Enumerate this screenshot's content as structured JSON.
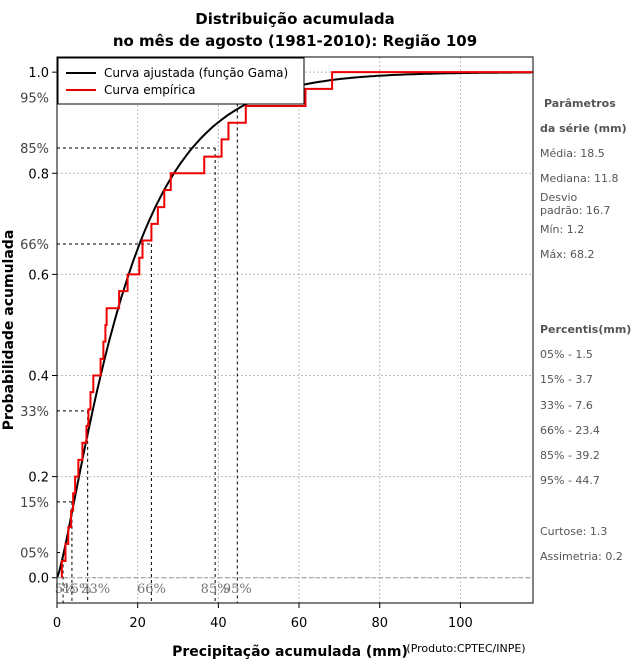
{
  "chart_data": {
    "type": "line",
    "title_line1": "Distribuição acumulada",
    "title_line2": "no mês de agosto (1981-2010): Região 109",
    "xlabel": "Precipitação acumulada (mm)",
    "xlabel_note": "(Produto:CPTEC/INPE)",
    "ylabel": "Probabilidade acumulada",
    "xlim": [
      0,
      118
    ],
    "ylim": [
      -0.05,
      1.03
    ],
    "x_ticks": [
      0,
      20,
      40,
      60,
      80,
      100
    ],
    "y_ticks": [
      0.0,
      0.2,
      0.4,
      0.6,
      0.8,
      1.0
    ],
    "y_tick_labels": [
      "0.0",
      "0.2",
      "0.4",
      "0.6",
      "0.8",
      "1.0"
    ],
    "grid": true,
    "legend_position": "top-left",
    "series": [
      {
        "name": "Curva ajustada (função Gama)",
        "color": "#000000",
        "gamma_shape": 1.3,
        "gamma_scale": 14.2
      },
      {
        "name": "Curva empírica",
        "color": "#ee0000",
        "steps": [
          [
            1.2,
            0.0
          ],
          [
            1.2,
            0.033
          ],
          [
            2.1,
            0.067
          ],
          [
            2.8,
            0.1
          ],
          [
            3.5,
            0.133
          ],
          [
            4.0,
            0.167
          ],
          [
            4.5,
            0.2
          ],
          [
            5.3,
            0.233
          ],
          [
            6.3,
            0.267
          ],
          [
            7.3,
            0.3
          ],
          [
            7.8,
            0.333
          ],
          [
            8.3,
            0.367
          ],
          [
            9.0,
            0.4
          ],
          [
            10.8,
            0.433
          ],
          [
            11.5,
            0.467
          ],
          [
            12.0,
            0.5
          ],
          [
            12.3,
            0.533
          ],
          [
            15.4,
            0.567
          ],
          [
            17.5,
            0.6
          ],
          [
            20.4,
            0.633
          ],
          [
            21.2,
            0.667
          ],
          [
            23.4,
            0.7
          ],
          [
            25.0,
            0.733
          ],
          [
            26.6,
            0.767
          ],
          [
            28.2,
            0.8
          ],
          [
            36.5,
            0.833
          ],
          [
            40.8,
            0.867
          ],
          [
            42.5,
            0.9
          ],
          [
            46.8,
            0.933
          ],
          [
            61.6,
            0.967
          ],
          [
            68.2,
            1.0
          ],
          [
            118,
            1.0
          ]
        ]
      }
    ],
    "percentile_guides": [
      {
        "label": "5%",
        "y_label": "05%",
        "x": 1.5,
        "y": 0.05
      },
      {
        "label": "15%",
        "y_label": "15%",
        "x": 3.7,
        "y": 0.15
      },
      {
        "label": "33%",
        "y_label": "33%",
        "x": 7.6,
        "y": 0.33
      },
      {
        "label": "66%",
        "y_label": "66%",
        "x": 23.4,
        "y": 0.66
      },
      {
        "label": "85%",
        "y_label": "85%",
        "x": 39.2,
        "y": 0.85
      },
      {
        "label": "95%",
        "y_label": "95%",
        "x": 44.7,
        "y": 0.95
      }
    ]
  },
  "side_panel": {
    "params_title_1": "Parâmetros",
    "params_title_2": "da série (mm)",
    "media": "Média: 18.5",
    "mediana": "Mediana: 11.8",
    "desvio": "Desvio\npadrão: 16.7",
    "min": "Mín: 1.2",
    "max": "Máx: 68.2",
    "percentis_title": "Percentis(mm)",
    "p05": "05% - 1.5",
    "p15": "15% - 3.7",
    "p33": "33% - 7.6",
    "p66": "66% - 23.4",
    "p85": "85% - 39.2",
    "p95": "95% - 44.7",
    "curtose": "Curtose: 1.3",
    "assimetria": "Assimetria: 0.2"
  }
}
